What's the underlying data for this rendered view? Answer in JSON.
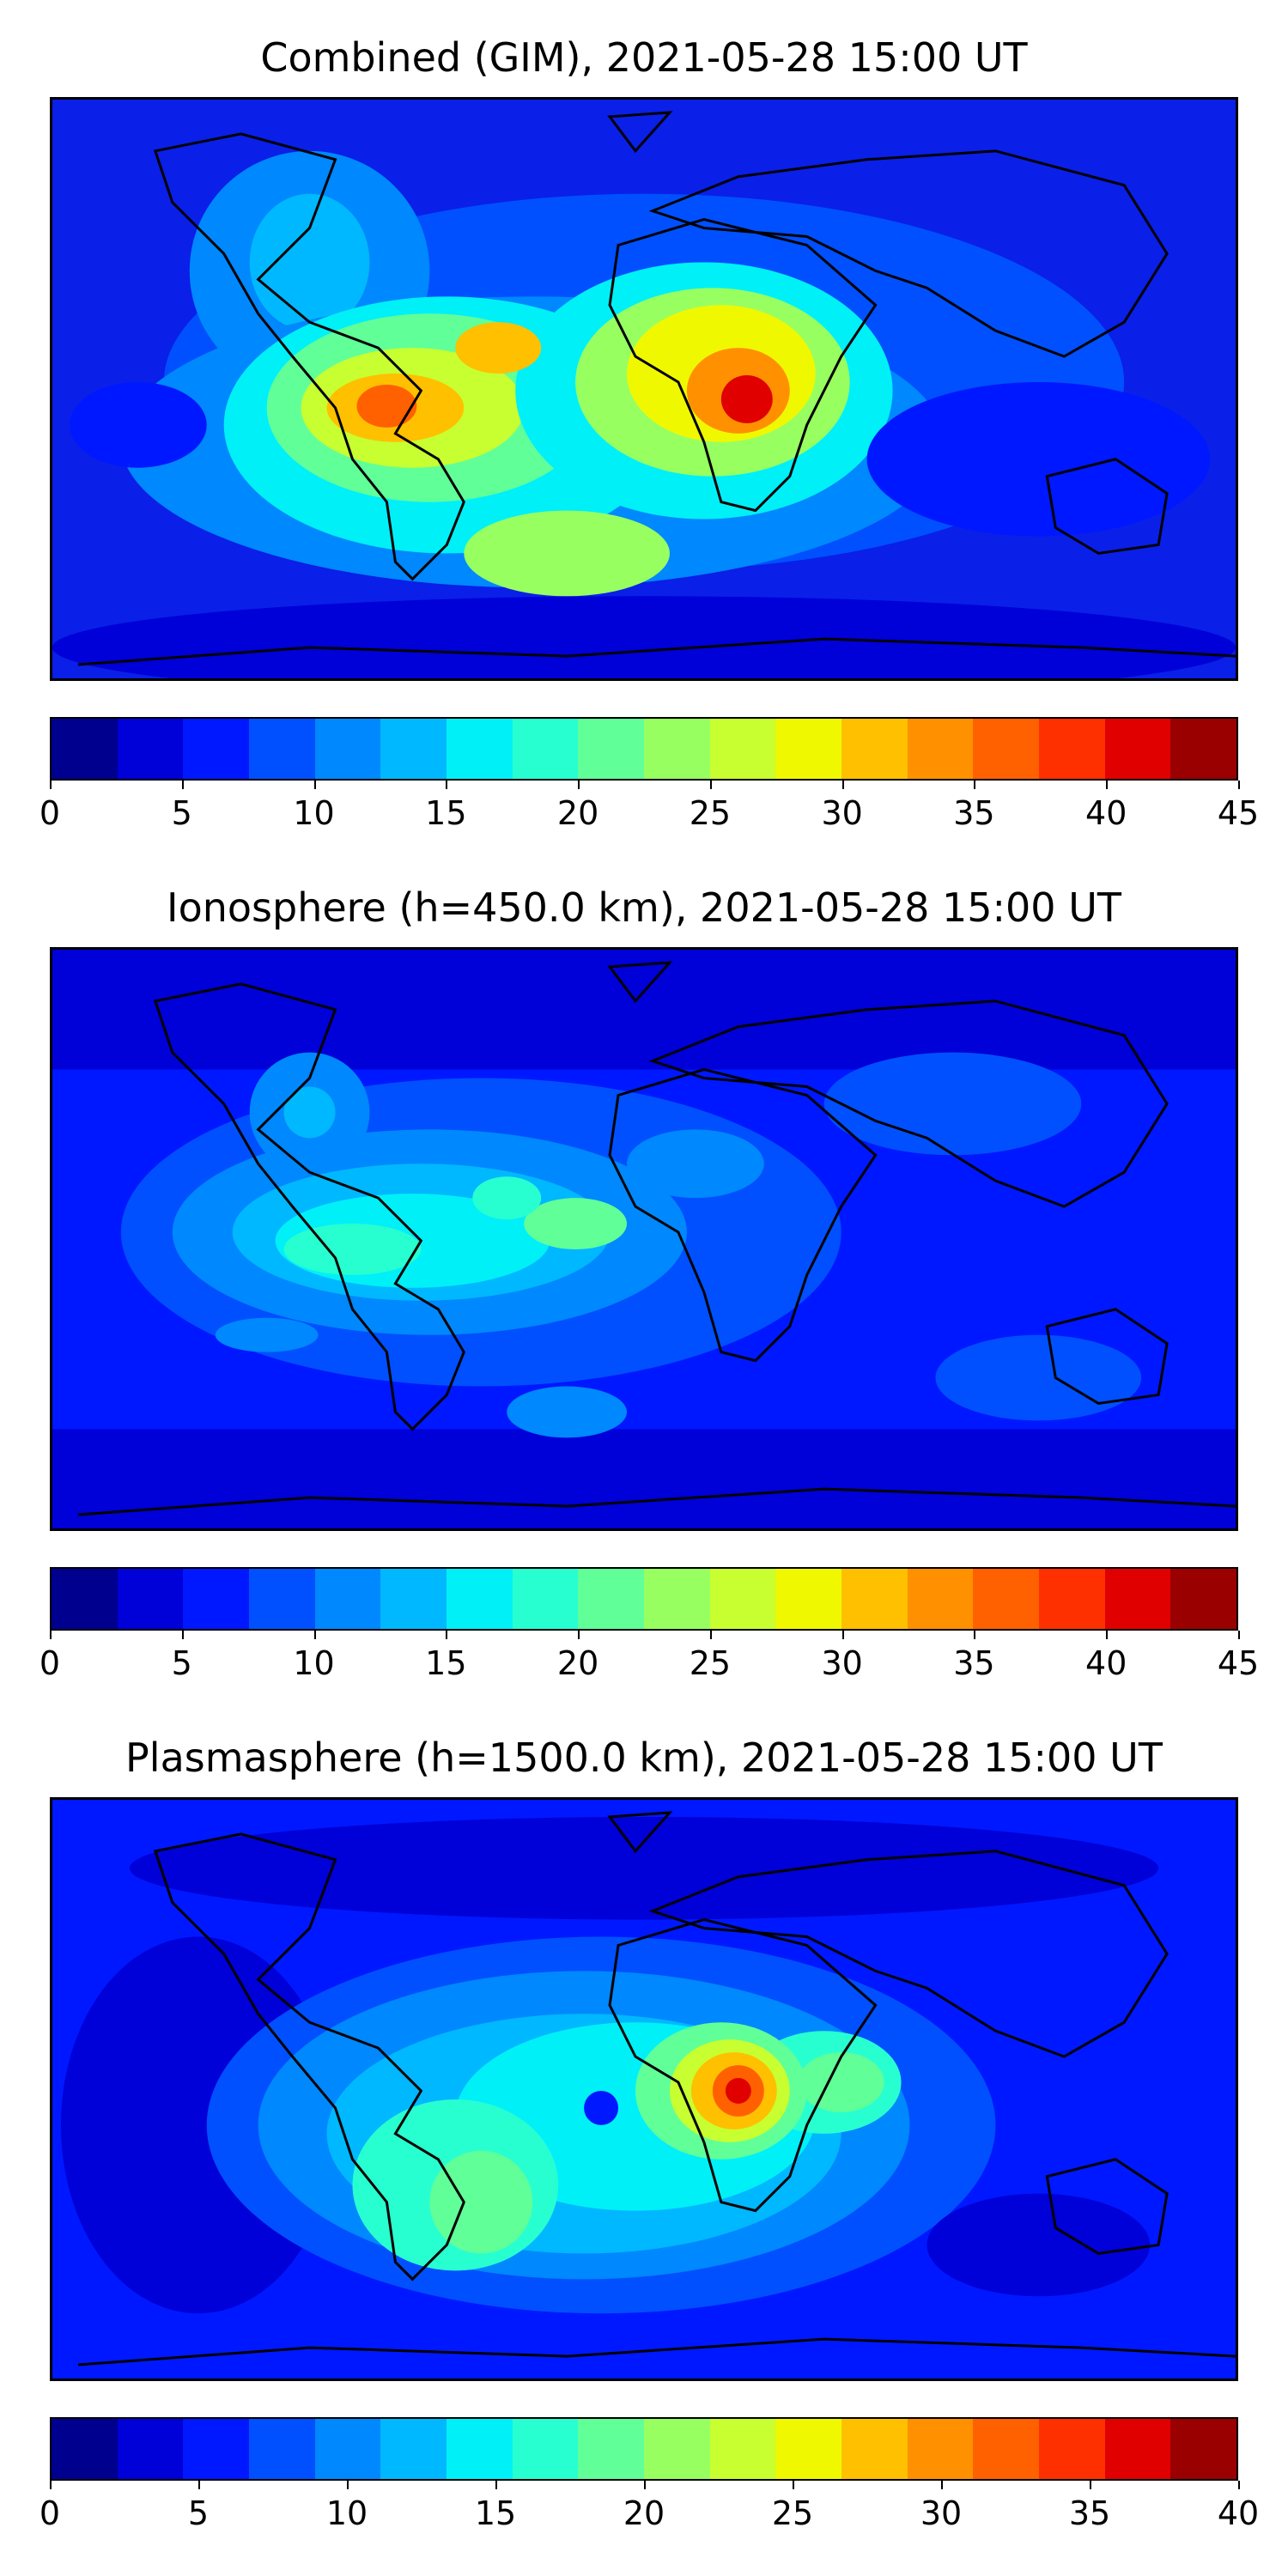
{
  "panels": [
    {
      "title": "Combined (GIM), 2021-05-28 15:00 UT",
      "colorbar": {
        "colors": [
          "#00008f",
          "#0000d8",
          "#0018ff",
          "#0050ff",
          "#0088ff",
          "#00b8ff",
          "#00f0f8",
          "#28ffd0",
          "#60ff98",
          "#98ff60",
          "#c8ff30",
          "#f0f800",
          "#ffc000",
          "#ff9000",
          "#ff6000",
          "#ff3000",
          "#e00000",
          "#9a0000"
        ],
        "ticks": [
          "0",
          "5",
          "10",
          "15",
          "20",
          "25",
          "30",
          "35",
          "40",
          "45"
        ]
      }
    },
    {
      "title": "Ionosphere  (h=450.0 km), 2021-05-28 15:00 UT",
      "colorbar": {
        "colors": [
          "#00008f",
          "#0000d8",
          "#0018ff",
          "#0050ff",
          "#0088ff",
          "#00b8ff",
          "#00f0f8",
          "#28ffd0",
          "#60ff98",
          "#98ff60",
          "#c8ff30",
          "#f0f800",
          "#ffc000",
          "#ff9000",
          "#ff6000",
          "#ff3000",
          "#e00000",
          "#9a0000"
        ],
        "ticks": [
          "0",
          "5",
          "10",
          "15",
          "20",
          "25",
          "30",
          "35",
          "40",
          "45"
        ]
      }
    },
    {
      "title": "Plasmasphere (h=1500.0 km), 2021-05-28 15:00 UT",
      "colorbar": {
        "colors": [
          "#00008f",
          "#0000d8",
          "#0018ff",
          "#0050ff",
          "#0088ff",
          "#00b8ff",
          "#00f0f8",
          "#28ffd0",
          "#60ff98",
          "#98ff60",
          "#c8ff30",
          "#f0f800",
          "#ffc000",
          "#ff9000",
          "#ff6000",
          "#ff3000",
          "#e00000",
          "#9a0000"
        ],
        "ticks": [
          "0",
          "5",
          "10",
          "15",
          "20",
          "25",
          "30",
          "35",
          "40"
        ]
      }
    }
  ]
}
